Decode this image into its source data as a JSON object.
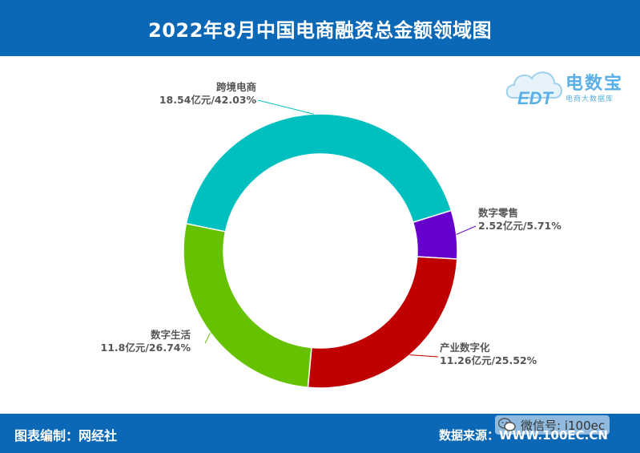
{
  "header": {
    "title": "2022年8月中国电商融资总金额领域图"
  },
  "footer": {
    "credit": "图表编制：网经社",
    "source": "数据来源：WWW.100EC.CN"
  },
  "watermark": {
    "text": "微信号: i100ec",
    "icon": "wechat-icon"
  },
  "logo": {
    "name": "电数宝",
    "sub": "电商大数据库",
    "mark_text": "EDT",
    "icon": "cloud-icon"
  },
  "colors": {
    "header_bg": "#0a68b6",
    "footer_bg": "#0a68b6",
    "label_text": "#555555"
  },
  "chart_data": {
    "type": "pie",
    "style": "donut",
    "title": "2022年8月中国电商融资总金额领域图",
    "units": "亿元",
    "slices": [
      {
        "name": "数字零售",
        "value": 2.52,
        "percent": 5.71,
        "label": "2.52亿元/5.71%",
        "color": "#6600cc"
      },
      {
        "name": "产业数字化",
        "value": 11.26,
        "percent": 25.52,
        "label": "11.26亿元/25.52%",
        "color": "#c00000"
      },
      {
        "name": "数字生活",
        "value": 11.8,
        "percent": 26.74,
        "label": "11.8亿元/26.74%",
        "color": "#66c200"
      },
      {
        "name": "跨境电商",
        "value": 18.54,
        "percent": 42.03,
        "label": "18.54亿元/42.03%",
        "color": "#00bfbf"
      }
    ]
  }
}
